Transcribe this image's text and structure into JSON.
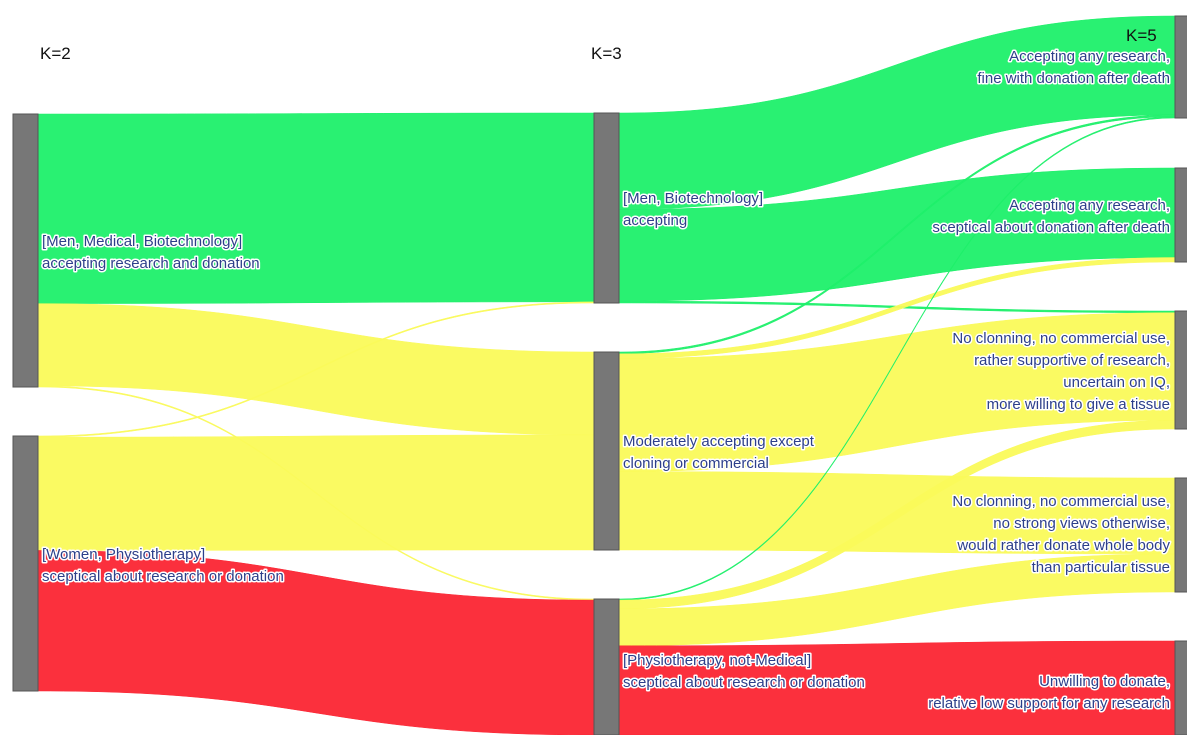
{
  "columns": [
    {
      "id": "k2",
      "title": "K=2"
    },
    {
      "id": "k3",
      "title": "K=3"
    },
    {
      "id": "k5",
      "title": "K=5"
    }
  ],
  "colors": {
    "green": "#1ef06a",
    "yellow": "#fafa5a",
    "red": "#fb2533",
    "node": "#777777"
  },
  "nodes": [
    {
      "id": "k2a",
      "column": "k2",
      "label_lines": [
        "[Men, Medical, Biotechnology]",
        "accepting research and donation"
      ]
    },
    {
      "id": "k2b",
      "column": "k2",
      "label_lines": [
        "[Women, Physiotherapy]",
        "sceptical about research or donation"
      ]
    },
    {
      "id": "k3a",
      "column": "k3",
      "label_lines": [
        "[Men, Biotechnology]",
        "accepting"
      ]
    },
    {
      "id": "k3b",
      "column": "k3",
      "label_lines": [
        "Moderately accepting except",
        "cloning or commercial"
      ]
    },
    {
      "id": "k3c",
      "column": "k3",
      "label_lines": [
        "[Physiotherapy, not-Medical]",
        "sceptical about research or donation"
      ]
    },
    {
      "id": "k5a",
      "column": "k5",
      "label_lines": [
        "Accepting any research,",
        "fine with donation after death"
      ]
    },
    {
      "id": "k5b",
      "column": "k5",
      "label_lines": [
        "Accepting any research,",
        "sceptical about donation after death"
      ]
    },
    {
      "id": "k5c",
      "column": "k5",
      "label_lines": [
        "No clonning, no commercial use,",
        "rather supportive of research,",
        "uncertain on IQ,",
        "more willing to give a tissue"
      ]
    },
    {
      "id": "k5d",
      "column": "k5",
      "label_lines": [
        "No clonning, no commercial use,",
        "no strong views otherwise,",
        "would rather donate whole body",
        "than particular tissue"
      ]
    },
    {
      "id": "k5e",
      "column": "k5",
      "label_lines": [
        "Unwilling to donate,",
        "relative low support for any research"
      ]
    }
  ],
  "flows": [
    {
      "source": "k2a",
      "target": "k3a",
      "value": 83,
      "color": "green"
    },
    {
      "source": "k2a",
      "target": "k3b",
      "value": 36,
      "color": "yellow"
    },
    {
      "source": "k2a",
      "target": "k3c",
      "value": 0.5,
      "color": "yellow"
    },
    {
      "source": "k2b",
      "target": "k3a",
      "value": 0.5,
      "color": "yellow"
    },
    {
      "source": "k2b",
      "target": "k3b",
      "value": 50,
      "color": "yellow"
    },
    {
      "source": "k2b",
      "target": "k3c",
      "value": 62,
      "color": "red"
    },
    {
      "source": "k3a",
      "target": "k5a",
      "value": 42,
      "color": "green"
    },
    {
      "source": "k3a",
      "target": "k5b",
      "value": 40,
      "color": "green"
    },
    {
      "source": "k3a",
      "target": "k5c",
      "value": 0.8,
      "color": "green"
    },
    {
      "source": "k3b",
      "target": "k5a",
      "value": 0.8,
      "color": "green"
    },
    {
      "source": "k3b",
      "target": "k5b",
      "value": 2,
      "color": "yellow"
    },
    {
      "source": "k3b",
      "target": "k5c",
      "value": 49,
      "color": "yellow"
    },
    {
      "source": "k3b",
      "target": "k5d",
      "value": 34,
      "color": "yellow"
    },
    {
      "source": "k3c",
      "target": "k5a",
      "value": 0.5,
      "color": "green"
    },
    {
      "source": "k3c",
      "target": "k5c",
      "value": 4,
      "color": "yellow"
    },
    {
      "source": "k3c",
      "target": "k5d",
      "value": 17,
      "color": "yellow"
    },
    {
      "source": "k3c",
      "target": "k5e",
      "value": 41,
      "color": "red"
    }
  ]
}
